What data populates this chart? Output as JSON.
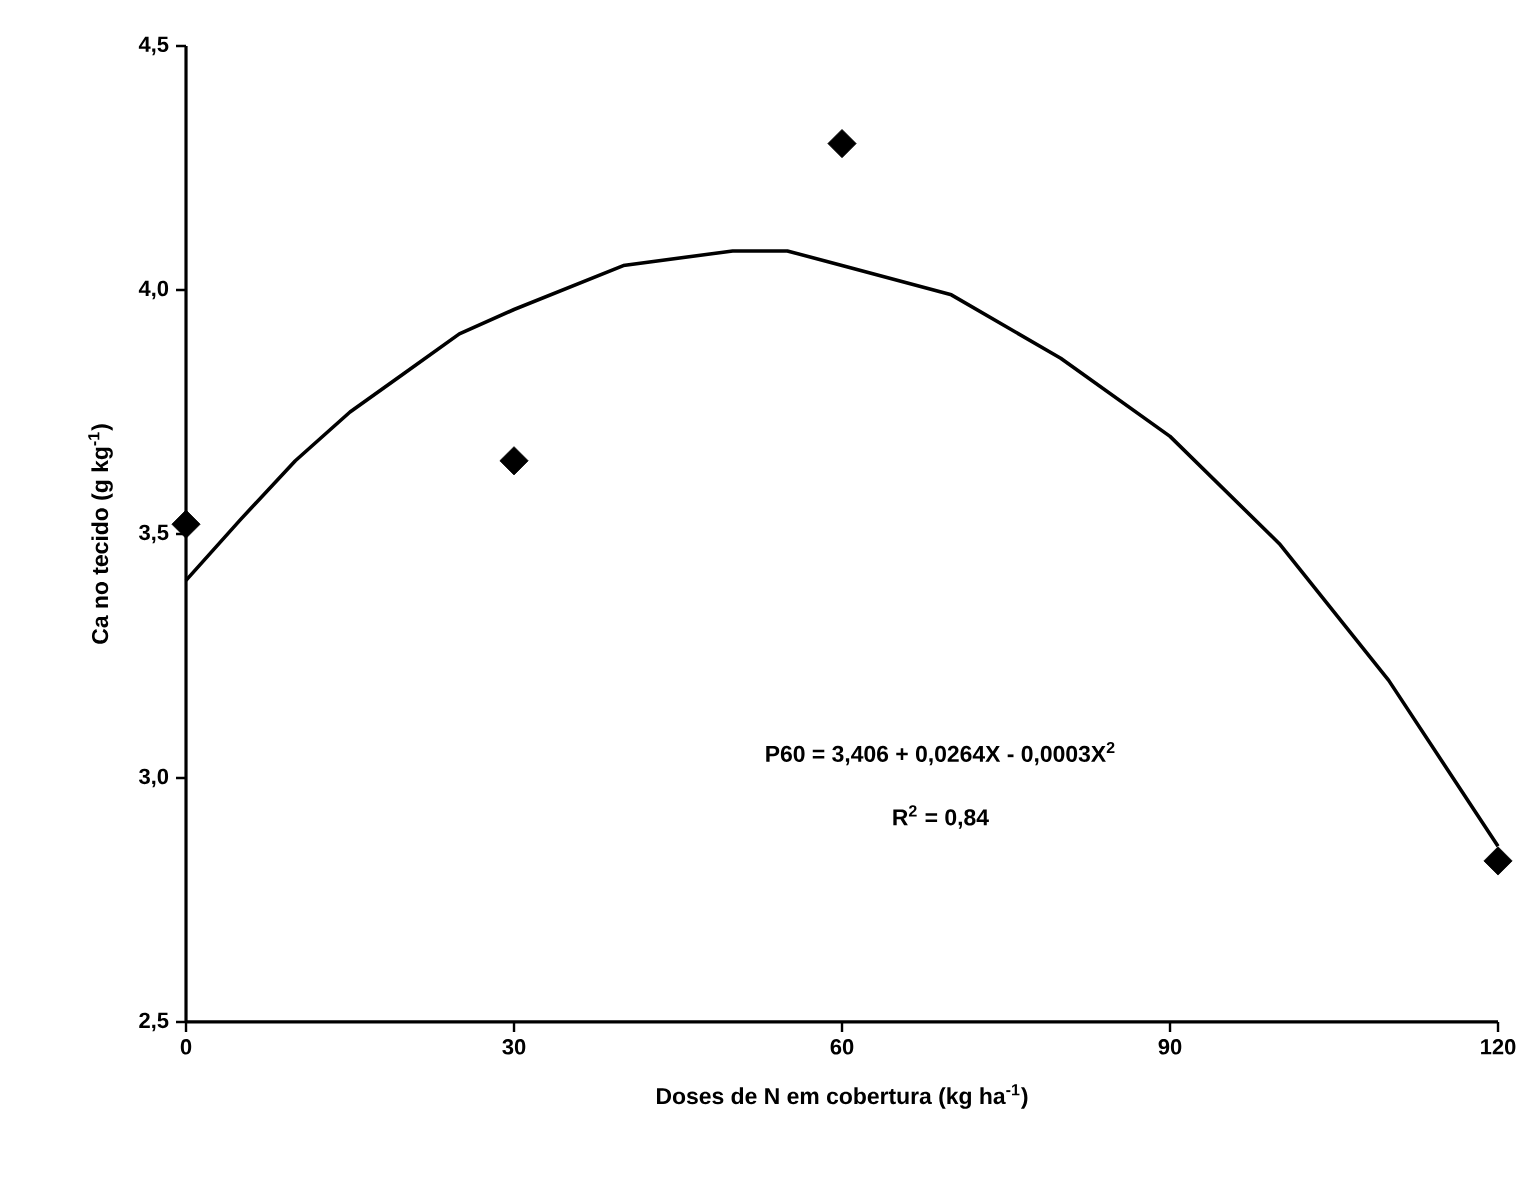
{
  "chart_data": {
    "type": "scatter",
    "xlabel": "Doses de N em cobertura (kg ha$^{-1}$)",
    "ylabel": "Ca no tecido (g kg$^{-1}$)",
    "xlim": [
      0,
      120
    ],
    "ylim": [
      2.5,
      4.5
    ],
    "xticks": [
      0,
      30,
      60,
      90,
      120
    ],
    "yticks": [
      {
        "value": 2.5,
        "label": "2,5"
      },
      {
        "value": 3.0,
        "label": "3,0"
      },
      {
        "value": 3.5,
        "label": "3,5"
      },
      {
        "value": 4.0,
        "label": "4,0"
      },
      {
        "value": 4.5,
        "label": "4,5"
      }
    ],
    "series": [
      {
        "color": "#000000",
        "marker": "diamond",
        "x": [
          0,
          30,
          60,
          120
        ],
        "values": [
          3.52,
          3.65,
          4.3,
          2.83
        ]
      },
      {
        "type": "line",
        "color": "#000000",
        "marker": "none",
        "x": [
          0,
          5,
          10,
          15,
          20,
          25,
          30,
          40,
          50,
          55,
          60,
          70,
          80,
          90,
          100,
          110,
          120
        ],
        "values": [
          3.405,
          3.53,
          3.65,
          3.75,
          3.83,
          3.91,
          3.96,
          4.05,
          4.08,
          4.08,
          4.05,
          3.99,
          3.86,
          3.7,
          3.48,
          3.2,
          2.86
        ]
      }
    ],
    "annotations": [
      "P60 = 3,406 + 0,0264X - 0,0003X$^{2}$",
      "R$^{2}$ = 0,84"
    ]
  }
}
